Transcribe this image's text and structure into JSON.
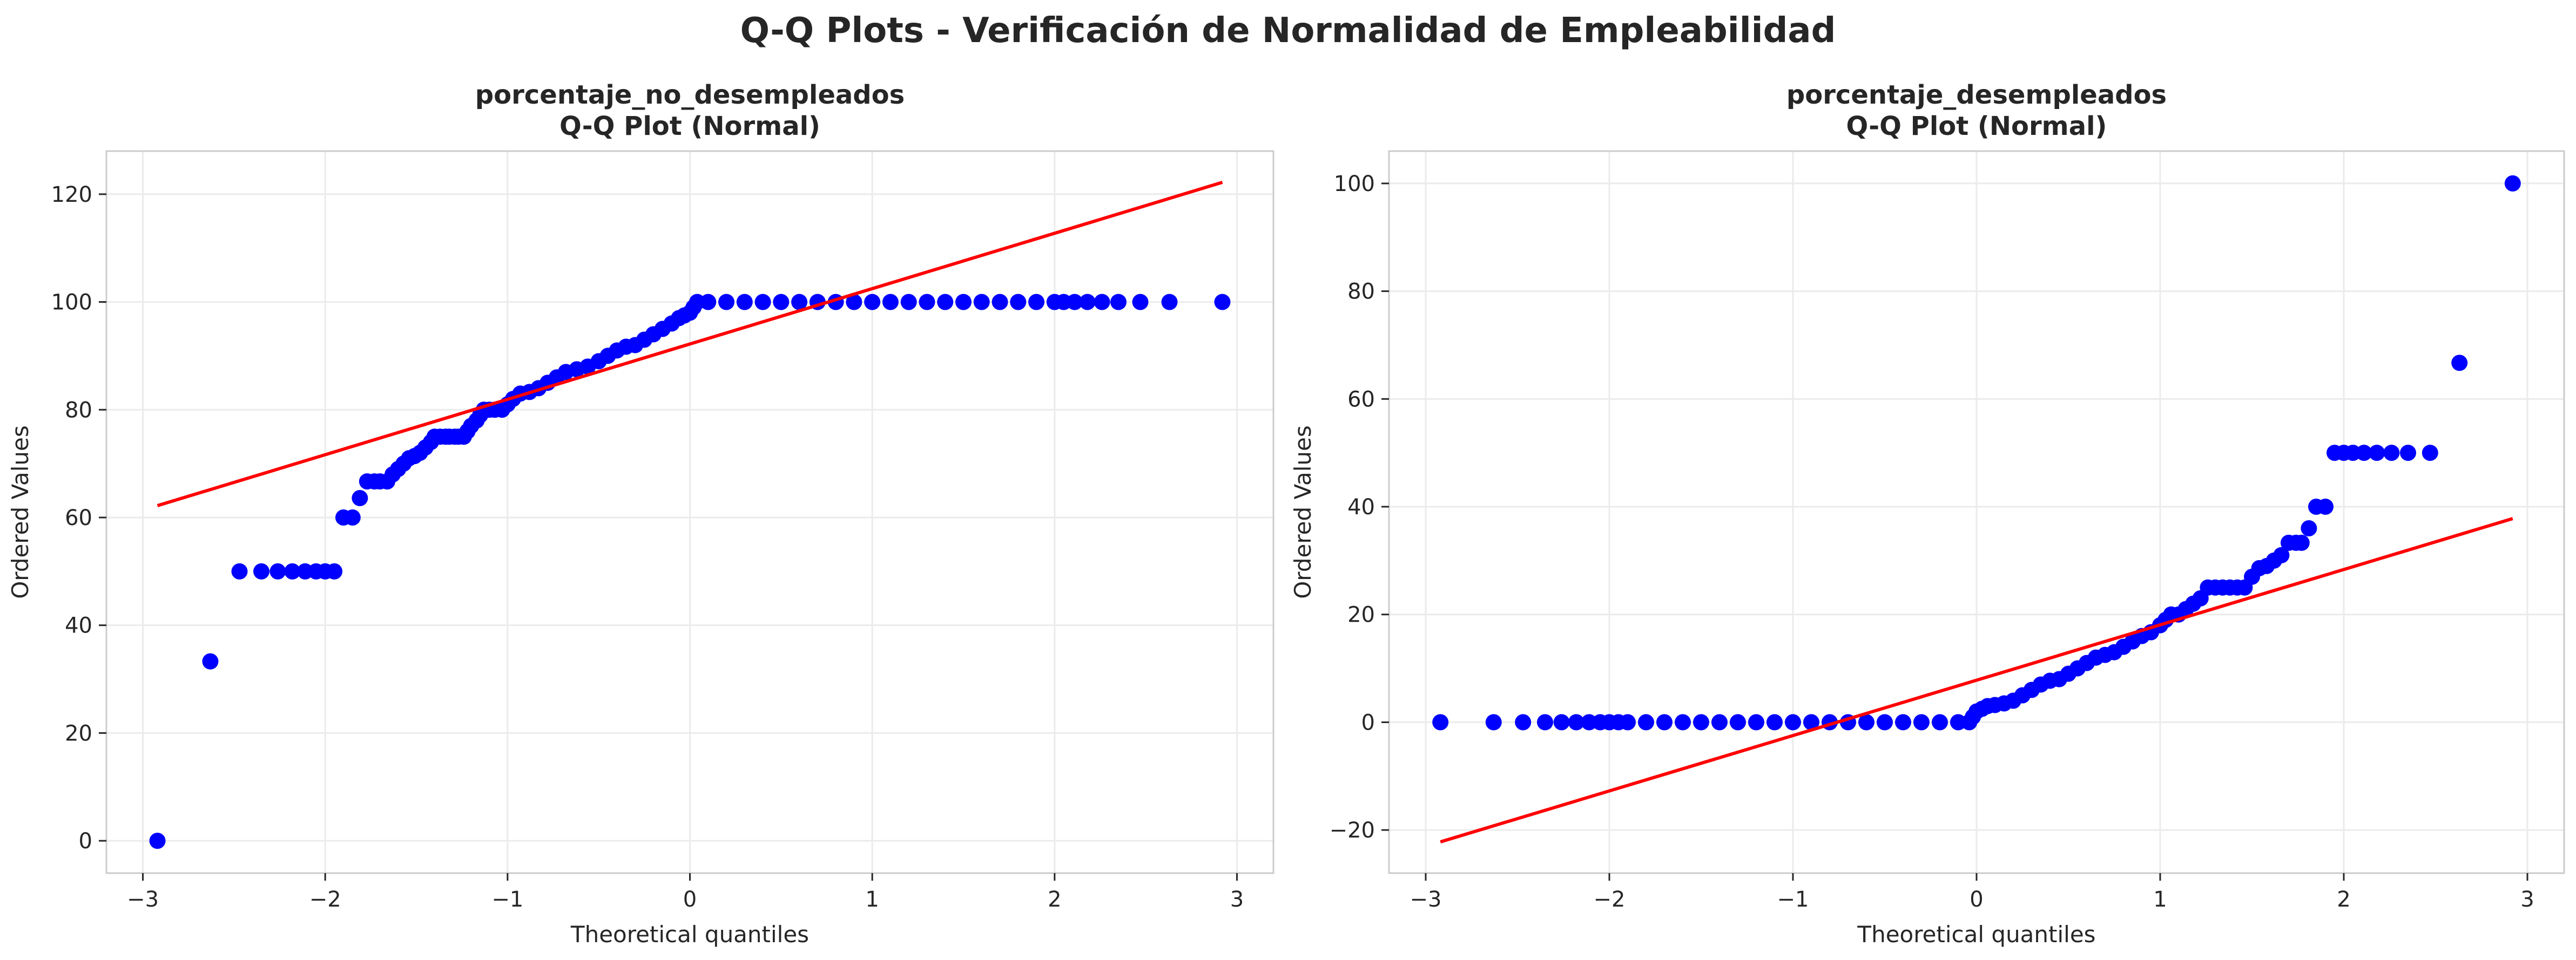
{
  "figure": {
    "suptitle": "Q-Q Plots - Verificación de Normalidad de Empleabilidad"
  },
  "chart_data": [
    {
      "type": "scatter",
      "title": "porcentaje_no_desempleados",
      "subtitle": "Q-Q Plot (Normal)",
      "xlabel": "Theoretical quantiles",
      "ylabel": "Ordered Values",
      "xlim": [
        -3.2,
        3.2
      ],
      "ylim": [
        -6,
        128
      ],
      "xticks": [
        -3,
        -2,
        -1,
        0,
        1,
        2,
        3
      ],
      "yticks": [
        0,
        20,
        40,
        60,
        80,
        100,
        120
      ],
      "grid": true,
      "marker_color": "#0000ff",
      "line_color": "#ff0000",
      "fit_line": {
        "x": [
          -2.92,
          2.92
        ],
        "y": [
          62.2,
          122.2
        ]
      },
      "points": [
        [
          -2.92,
          0
        ],
        [
          -2.63,
          33.3
        ],
        [
          -2.47,
          50
        ],
        [
          -2.35,
          50
        ],
        [
          -2.26,
          50
        ],
        [
          -2.18,
          50
        ],
        [
          -2.11,
          50
        ],
        [
          -2.05,
          50
        ],
        [
          -2.0,
          50
        ],
        [
          -1.95,
          50
        ],
        [
          -1.9,
          60
        ],
        [
          -1.85,
          60
        ],
        [
          -1.81,
          63.6
        ],
        [
          -1.77,
          66.7
        ],
        [
          -1.73,
          66.7
        ],
        [
          -1.7,
          66.7
        ],
        [
          -1.66,
          66.7
        ],
        [
          -1.63,
          68
        ],
        [
          -1.6,
          69
        ],
        [
          -1.57,
          70
        ],
        [
          -1.54,
          71
        ],
        [
          -1.51,
          71.4
        ],
        [
          -1.48,
          72
        ],
        [
          -1.45,
          73
        ],
        [
          -1.42,
          74
        ],
        [
          -1.4,
          75
        ],
        [
          -1.37,
          75
        ],
        [
          -1.34,
          75
        ],
        [
          -1.32,
          75
        ],
        [
          -1.29,
          75
        ],
        [
          -1.27,
          75
        ],
        [
          -1.24,
          75
        ],
        [
          -1.22,
          76
        ],
        [
          -1.2,
          77
        ],
        [
          -1.17,
          78
        ],
        [
          -1.15,
          79
        ],
        [
          -1.13,
          80
        ],
        [
          -1.1,
          80
        ],
        [
          -1.07,
          80
        ],
        [
          -1.03,
          80
        ],
        [
          -1.0,
          81
        ],
        [
          -0.97,
          82
        ],
        [
          -0.93,
          83
        ],
        [
          -0.88,
          83.3
        ],
        [
          -0.83,
          84
        ],
        [
          -0.78,
          85
        ],
        [
          -0.73,
          86
        ],
        [
          -0.68,
          87
        ],
        [
          -0.62,
          87.5
        ],
        [
          -0.56,
          88
        ],
        [
          -0.5,
          89
        ],
        [
          -0.45,
          90
        ],
        [
          -0.4,
          91
        ],
        [
          -0.35,
          91.7
        ],
        [
          -0.3,
          92
        ],
        [
          -0.25,
          93
        ],
        [
          -0.2,
          94
        ],
        [
          -0.15,
          95
        ],
        [
          -0.1,
          96
        ],
        [
          -0.06,
          97
        ],
        [
          -0.03,
          97.5
        ],
        [
          0.0,
          98
        ],
        [
          0.02,
          99
        ],
        [
          0.04,
          100
        ],
        [
          0.1,
          100
        ],
        [
          0.2,
          100
        ],
        [
          0.3,
          100
        ],
        [
          0.4,
          100
        ],
        [
          0.5,
          100
        ],
        [
          0.6,
          100
        ],
        [
          0.7,
          100
        ],
        [
          0.8,
          100
        ],
        [
          0.9,
          100
        ],
        [
          1.0,
          100
        ],
        [
          1.1,
          100
        ],
        [
          1.2,
          100
        ],
        [
          1.3,
          100
        ],
        [
          1.4,
          100
        ],
        [
          1.5,
          100
        ],
        [
          1.6,
          100
        ],
        [
          1.7,
          100
        ],
        [
          1.8,
          100
        ],
        [
          1.9,
          100
        ],
        [
          2.0,
          100
        ],
        [
          2.05,
          100
        ],
        [
          2.11,
          100
        ],
        [
          2.18,
          100
        ],
        [
          2.26,
          100
        ],
        [
          2.35,
          100
        ],
        [
          2.47,
          100
        ],
        [
          2.63,
          100
        ],
        [
          2.92,
          100
        ]
      ]
    },
    {
      "type": "scatter",
      "title": "porcentaje_desempleados",
      "subtitle": "Q-Q Plot (Normal)",
      "xlabel": "Theoretical quantiles",
      "ylabel": "Ordered Values",
      "xlim": [
        -3.2,
        3.2
      ],
      "ylim": [
        -28,
        106
      ],
      "xticks": [
        -3,
        -2,
        -1,
        0,
        1,
        2,
        3
      ],
      "yticks": [
        -20,
        0,
        20,
        40,
        60,
        80,
        100
      ],
      "grid": true,
      "marker_color": "#0000ff",
      "line_color": "#ff0000",
      "fit_line": {
        "x": [
          -2.92,
          2.92
        ],
        "y": [
          -22.2,
          37.8
        ]
      },
      "points": [
        [
          -2.92,
          0
        ],
        [
          -2.63,
          0
        ],
        [
          -2.47,
          0
        ],
        [
          -2.35,
          0
        ],
        [
          -2.26,
          0
        ],
        [
          -2.18,
          0
        ],
        [
          -2.11,
          0
        ],
        [
          -2.05,
          0
        ],
        [
          -2.0,
          0
        ],
        [
          -1.95,
          0
        ],
        [
          -1.9,
          0
        ],
        [
          -1.8,
          0
        ],
        [
          -1.7,
          0
        ],
        [
          -1.6,
          0
        ],
        [
          -1.5,
          0
        ],
        [
          -1.4,
          0
        ],
        [
          -1.3,
          0
        ],
        [
          -1.2,
          0
        ],
        [
          -1.1,
          0
        ],
        [
          -1.0,
          0
        ],
        [
          -0.9,
          0
        ],
        [
          -0.8,
          0
        ],
        [
          -0.7,
          0
        ],
        [
          -0.6,
          0
        ],
        [
          -0.5,
          0
        ],
        [
          -0.4,
          0
        ],
        [
          -0.3,
          0
        ],
        [
          -0.2,
          0
        ],
        [
          -0.1,
          0
        ],
        [
          -0.04,
          0
        ],
        [
          -0.02,
          1
        ],
        [
          0.0,
          2
        ],
        [
          0.03,
          2.5
        ],
        [
          0.06,
          3
        ],
        [
          0.1,
          3.2
        ],
        [
          0.15,
          3.5
        ],
        [
          0.2,
          4
        ],
        [
          0.25,
          5
        ],
        [
          0.3,
          6
        ],
        [
          0.35,
          7
        ],
        [
          0.4,
          7.7
        ],
        [
          0.45,
          8
        ],
        [
          0.5,
          9
        ],
        [
          0.55,
          10
        ],
        [
          0.6,
          11
        ],
        [
          0.65,
          12
        ],
        [
          0.7,
          12.5
        ],
        [
          0.75,
          13
        ],
        [
          0.8,
          14
        ],
        [
          0.85,
          15
        ],
        [
          0.9,
          16
        ],
        [
          0.95,
          16.7
        ],
        [
          1.0,
          18
        ],
        [
          1.03,
          19
        ],
        [
          1.06,
          20
        ],
        [
          1.1,
          20
        ],
        [
          1.14,
          21
        ],
        [
          1.18,
          22
        ],
        [
          1.22,
          23
        ],
        [
          1.26,
          25
        ],
        [
          1.3,
          25
        ],
        [
          1.34,
          25
        ],
        [
          1.38,
          25
        ],
        [
          1.42,
          25
        ],
        [
          1.46,
          25
        ],
        [
          1.5,
          27
        ],
        [
          1.54,
          28.6
        ],
        [
          1.58,
          29
        ],
        [
          1.62,
          30
        ],
        [
          1.66,
          31
        ],
        [
          1.7,
          33.3
        ],
        [
          1.74,
          33.3
        ],
        [
          1.77,
          33.3
        ],
        [
          1.81,
          36
        ],
        [
          1.85,
          40
        ],
        [
          1.9,
          40
        ],
        [
          1.95,
          50
        ],
        [
          2.0,
          50
        ],
        [
          2.05,
          50
        ],
        [
          2.11,
          50
        ],
        [
          2.18,
          50
        ],
        [
          2.26,
          50
        ],
        [
          2.35,
          50
        ],
        [
          2.47,
          50
        ],
        [
          2.63,
          66.7
        ],
        [
          2.92,
          100
        ]
      ]
    }
  ]
}
